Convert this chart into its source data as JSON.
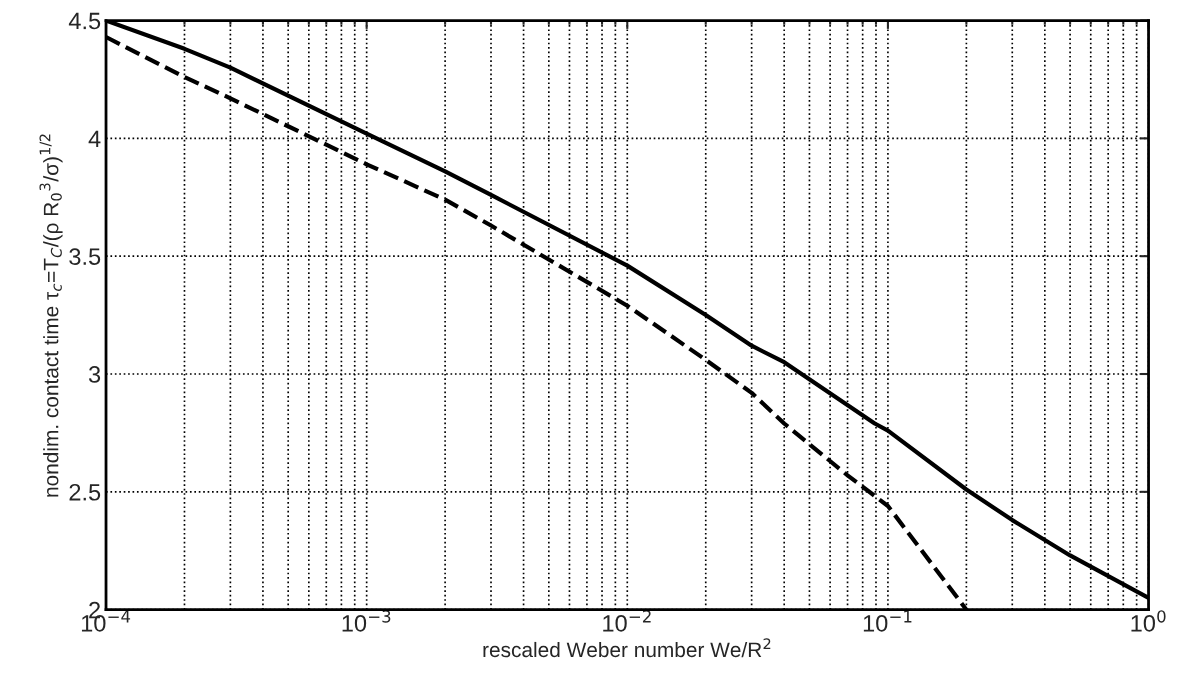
{
  "chart_data": {
    "type": "line",
    "xlabel": "rescaled Weber number We/R$^{2}$",
    "ylabel": "nondim. contact time τ$_{c}$=T$_{C}$/(ρ R$_{0}$$^{3}$/σ)$^{1/2}$",
    "log": "x",
    "grid": true,
    "marker": "none",
    "xlim": [
      0.0001,
      1
    ],
    "ylim": [
      2,
      4.5
    ],
    "xticks": [
      {
        "value": 0.0001,
        "label": "10$^{−4}$"
      },
      {
        "value": 0.001,
        "label": "10$^{−3}$"
      },
      {
        "value": 0.01,
        "label": "10$^{−2}$"
      },
      {
        "value": 0.1,
        "label": "10$^{−1}$"
      },
      {
        "value": 1,
        "label": "10$^{0}$"
      }
    ],
    "yticks": [
      2,
      2.5,
      3,
      3.5,
      4,
      4.5
    ],
    "series": [
      {
        "color": "#000000",
        "line_style": "solid",
        "x": [
          0.0001,
          0.0002,
          0.0003,
          0.001,
          0.002,
          0.003,
          0.01,
          0.02,
          0.03,
          0.04,
          0.089,
          0.1,
          0.2,
          0.3,
          0.5,
          1
        ],
        "values": [
          4.5,
          4.38,
          4.3,
          4.02,
          3.86,
          3.76,
          3.46,
          3.25,
          3.12,
          3.05,
          2.79,
          2.76,
          2.51,
          2.38,
          2.23,
          2.05
        ]
      },
      {
        "color": "#000000",
        "line_style": "dashed",
        "x": [
          0.0001,
          0.0002,
          0.0003,
          0.001,
          0.002,
          0.003,
          0.01,
          0.02,
          0.03,
          0.04,
          0.07,
          0.1,
          0.2
        ],
        "values": [
          4.43,
          4.26,
          4.17,
          3.89,
          3.74,
          3.63,
          3.29,
          3.06,
          2.92,
          2.79,
          2.57,
          2.44,
          2.0
        ]
      }
    ]
  }
}
